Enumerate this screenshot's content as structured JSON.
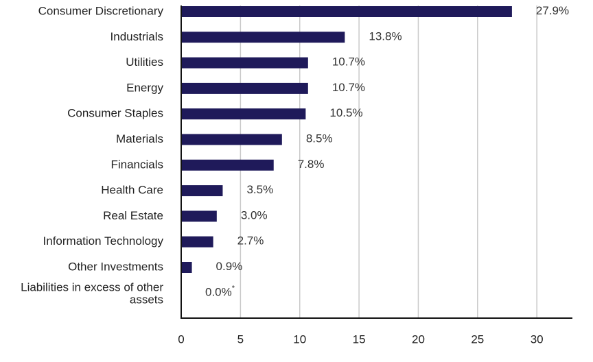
{
  "colors": {
    "bar": "#1f1a5a",
    "grid": "#c9c9c9",
    "axis": "#111111",
    "text": "#222222"
  },
  "chart_data": {
    "type": "bar",
    "orientation": "horizontal",
    "categories": [
      "Consumer Discretionary",
      "Industrials",
      "Utilities",
      "Energy",
      "Consumer Staples",
      "Materials",
      "Financials",
      "Health Care",
      "Real Estate",
      "Information Technology",
      "Other Investments",
      "Liabilities in excess of other assets"
    ],
    "values": [
      27.9,
      13.8,
      10.7,
      10.7,
      10.5,
      8.5,
      7.8,
      3.5,
      3.0,
      2.7,
      0.9,
      0.0
    ],
    "value_labels": [
      "27.9%",
      "13.8%",
      "10.7%",
      "10.7%",
      "10.5%",
      "8.5%",
      "7.8%",
      "3.5%",
      "3.0%",
      "2.7%",
      "0.9%",
      "0.0%"
    ],
    "value_label_footnotes": [
      "",
      "",
      "",
      "",
      "",
      "",
      "",
      "",
      "",
      "",
      "",
      "*"
    ],
    "xlim": [
      0,
      33
    ],
    "xticks": [
      0,
      5,
      10,
      15,
      20,
      25,
      30
    ],
    "title": "",
    "xlabel": "",
    "ylabel": "",
    "grid": "vertical",
    "legend": "none"
  }
}
